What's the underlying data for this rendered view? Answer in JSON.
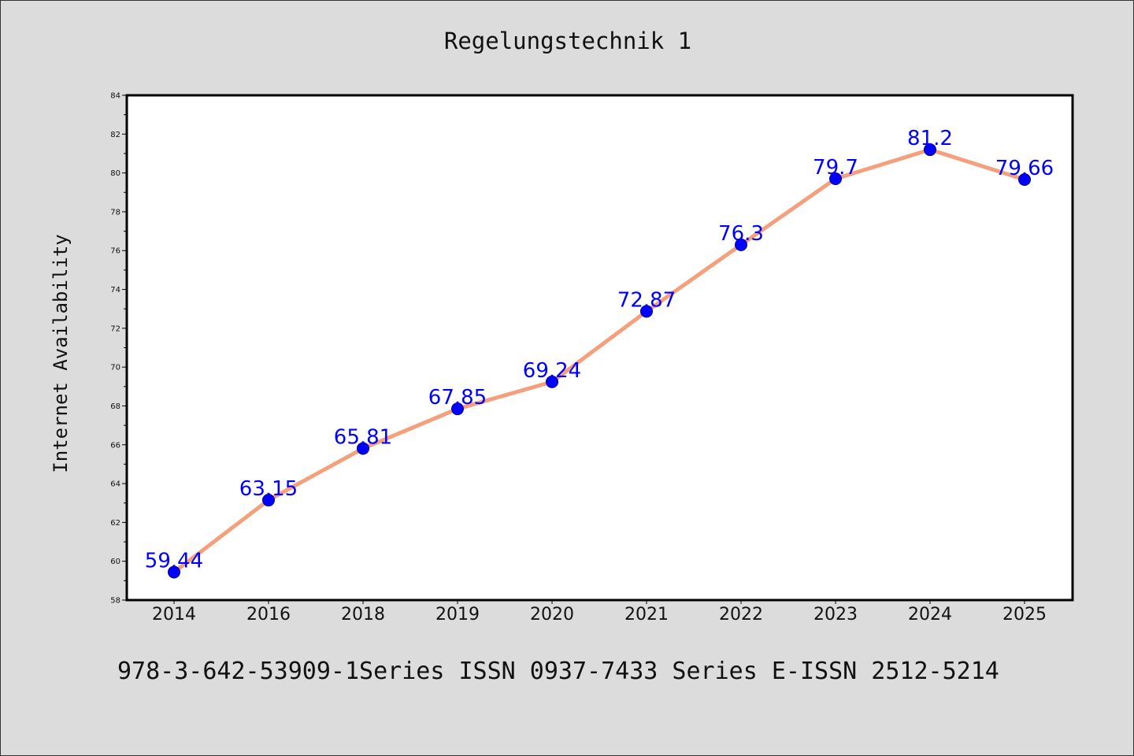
{
  "page": {
    "title": "Regelungstechnik 1",
    "footer": "978-3-642-53909-1Series ISSN 0937-7433 Series E-ISSN 2512-5214"
  },
  "colors": {
    "background": "#dcdcdc",
    "plot_area": "#ffffff",
    "line": "#f4a07c",
    "marker": "#0000ff",
    "data_label": "#0000ff"
  },
  "chart_data": {
    "type": "line",
    "title": "Regelungstechnik 1",
    "xlabel": "",
    "ylabel": "Internet Availability",
    "categories": [
      "2014",
      "2016",
      "2018",
      "2019",
      "2020",
      "2021",
      "2022",
      "2023",
      "2024",
      "2025"
    ],
    "series": [
      {
        "values": [
          59.44,
          63.15,
          65.81,
          67.85,
          69.24,
          72.87,
          76.3,
          79.7,
          81.2,
          79.66
        ],
        "labels": [
          "59.44",
          "63.15",
          "65.81",
          "67.85",
          "69.24",
          "72.87",
          "76.3",
          "79.7",
          "81.2",
          "79.66"
        ]
      }
    ],
    "ylim": [
      58,
      84
    ],
    "yticks": [
      58,
      60,
      62,
      64,
      66,
      68,
      70,
      72,
      74,
      76,
      78,
      80,
      82,
      84
    ],
    "grid": false,
    "legend": "none",
    "markers": "filled-circle"
  }
}
